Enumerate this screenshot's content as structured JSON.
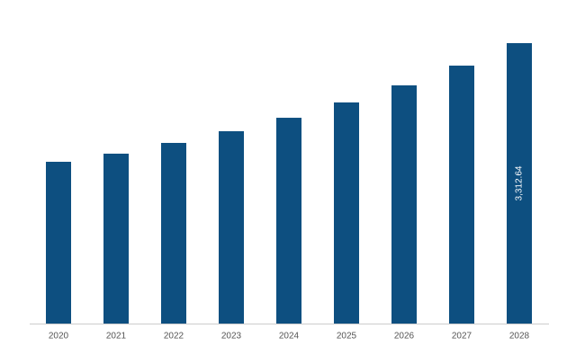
{
  "chart_data": {
    "type": "bar",
    "categories": [
      "2020",
      "2021",
      "2022",
      "2023",
      "2024",
      "2025",
      "2026",
      "2027",
      "2028"
    ],
    "values": [
      1911,
      2007,
      2134,
      2272,
      2431,
      2612,
      2814,
      3047,
      3312.64
    ],
    "value_labels": [
      null,
      null,
      null,
      null,
      null,
      null,
      null,
      null,
      "3,312.64"
    ],
    "color": "#0d4f80"
  }
}
